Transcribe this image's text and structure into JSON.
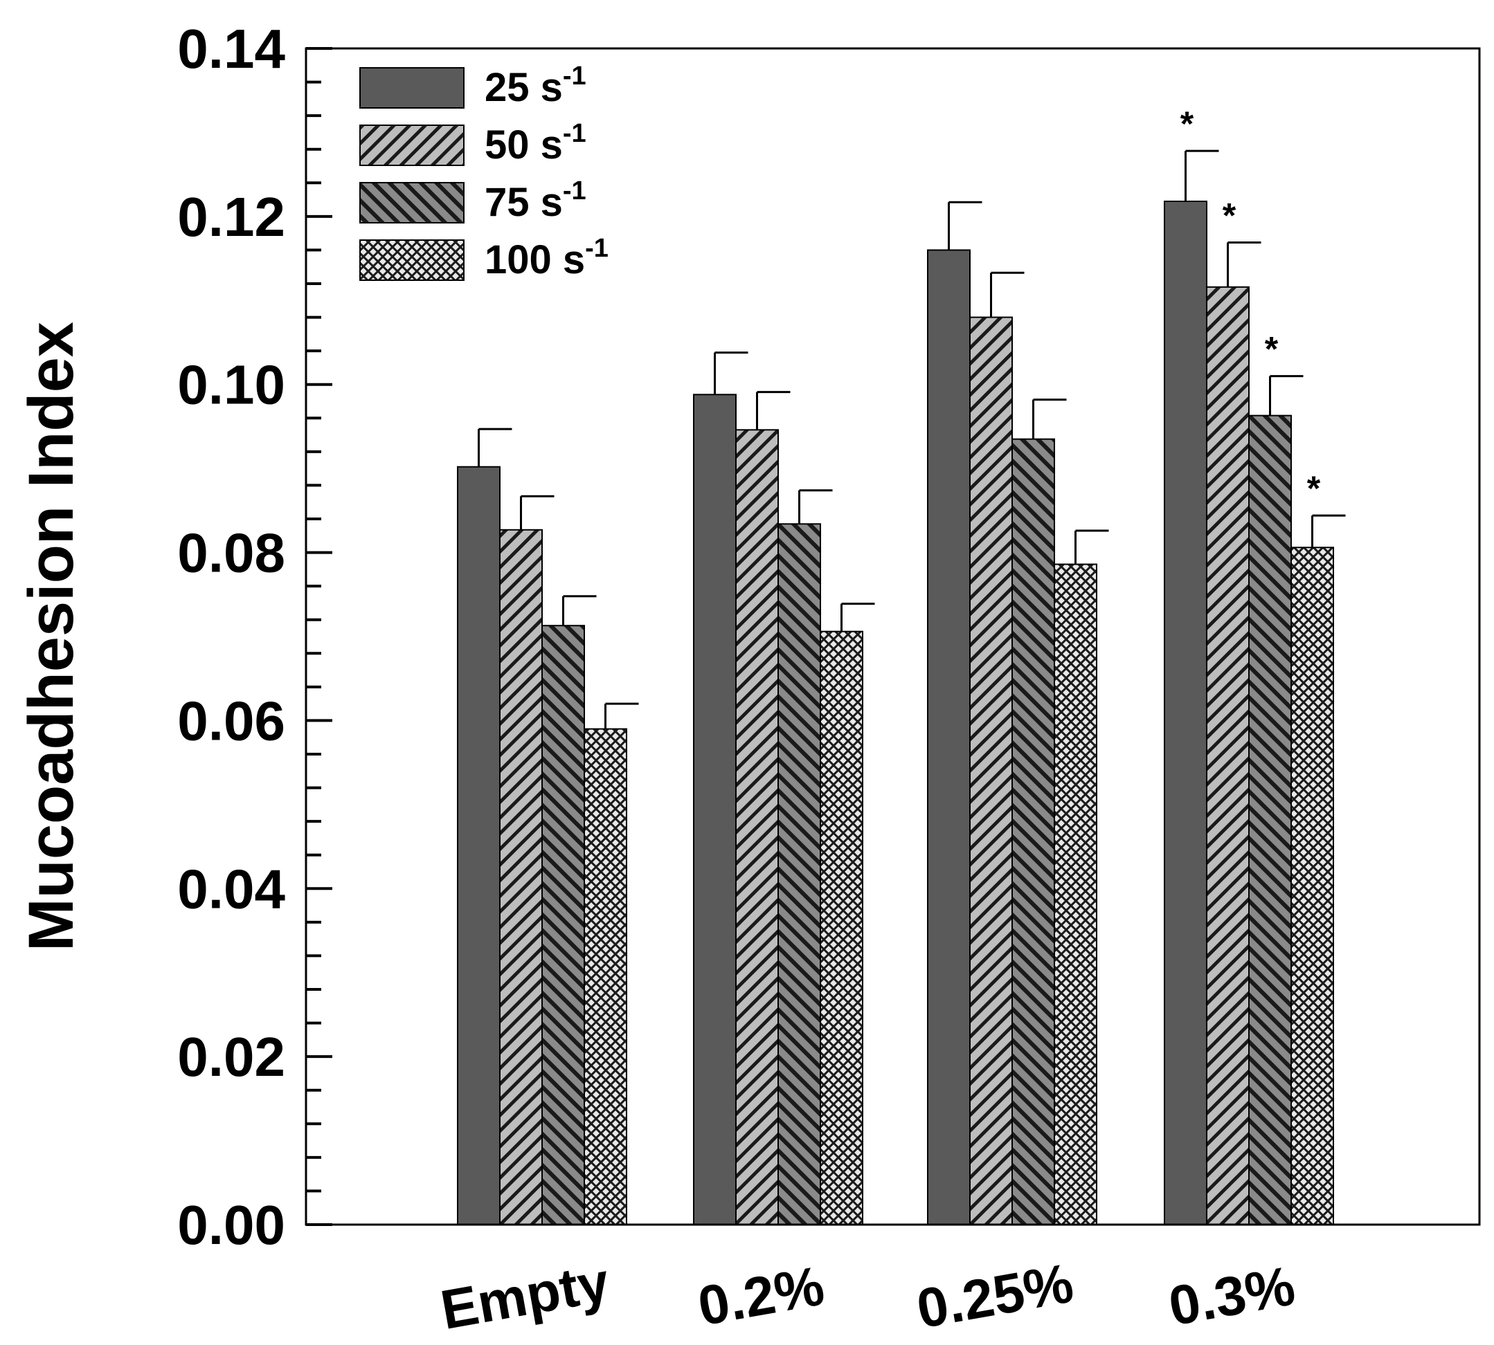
{
  "chart_data": {
    "type": "bar",
    "title": "",
    "xlabel": "",
    "ylabel": "Mucoadhesion Index",
    "ylim": [
      0,
      0.14
    ],
    "yticks": [
      "0.00",
      "0.02",
      "0.04",
      "0.06",
      "0.08",
      "0.10",
      "0.12",
      "0.14"
    ],
    "ytick_values": [
      0,
      0.02,
      0.04,
      0.06,
      0.08,
      0.1,
      0.12,
      0.14
    ],
    "categories": [
      "Empty",
      "0.2%",
      "0.25%",
      "0.3%"
    ],
    "legend_position": "top-left",
    "series": [
      {
        "name": "25 s",
        "sup": "-1",
        "pattern": "solid",
        "values": [
          0.0902,
          0.0988,
          0.116,
          0.1218
        ],
        "errors": [
          0.0045,
          0.005,
          0.0057,
          0.006
        ],
        "significance": [
          "",
          "",
          "",
          "*"
        ]
      },
      {
        "name": "50 s",
        "sup": "-1",
        "pattern": "diag-up",
        "values": [
          0.0827,
          0.0946,
          0.108,
          0.1116
        ],
        "errors": [
          0.004,
          0.0045,
          0.0053,
          0.0053
        ],
        "significance": [
          "",
          "",
          "",
          "*"
        ]
      },
      {
        "name": "75 s",
        "sup": "-1",
        "pattern": "diag-down",
        "values": [
          0.0713,
          0.0834,
          0.0935,
          0.0963
        ],
        "errors": [
          0.0035,
          0.004,
          0.0047,
          0.0047
        ],
        "significance": [
          "",
          "",
          "",
          "*"
        ]
      },
      {
        "name": "100 s",
        "sup": "-1",
        "pattern": "crosshatch",
        "values": [
          0.059,
          0.0706,
          0.0786,
          0.0806
        ],
        "errors": [
          0.003,
          0.0033,
          0.004,
          0.0038
        ],
        "significance": [
          "",
          "",
          "",
          "*"
        ]
      }
    ]
  },
  "colors": {
    "bar_fill": "#5a5a5a",
    "hatch_bg": "#bdbdbd",
    "hatch_line": "#1a1a1a",
    "axis": "#000000"
  }
}
